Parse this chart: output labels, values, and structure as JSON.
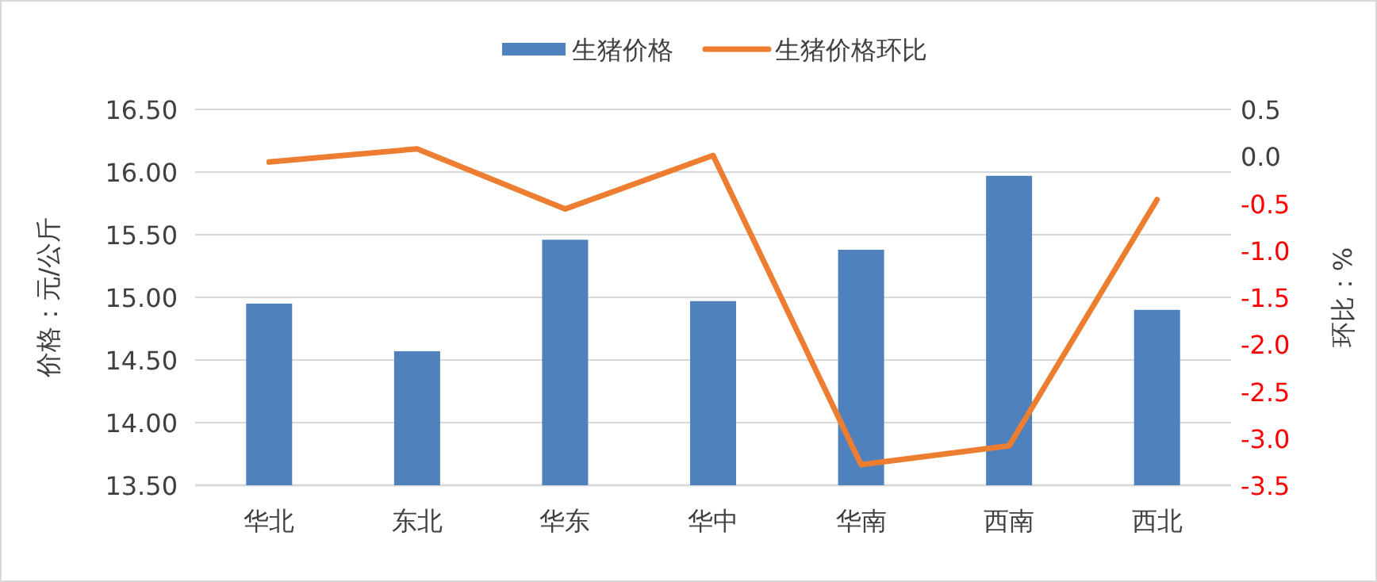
{
  "chart_data": {
    "type": "bar",
    "ylabel": "价格：元/公斤",
    "y2label": "环比：%",
    "categories": [
      "华北",
      "东北",
      "华东",
      "华中",
      "华南",
      "西南",
      "西北"
    ],
    "series": [
      {
        "name": "生猪价格",
        "color": "#4f81bd",
        "values": [
          14.95,
          14.57,
          15.46,
          14.97,
          15.38,
          15.97,
          14.9
        ]
      },
      {
        "name": "生猪价格环比",
        "type": "line",
        "axis": "y2",
        "color": "#ed7d31",
        "values": [
          -0.06,
          0.08,
          -0.56,
          0.01,
          -3.28,
          -3.08,
          -0.46
        ]
      }
    ],
    "ylim": [
      13.5,
      16.5
    ],
    "yticks": [
      {
        "value": 13.5,
        "label": "13.50"
      },
      {
        "value": 14,
        "label": "14.00"
      },
      {
        "value": 14.5,
        "label": "14.50"
      },
      {
        "value": 15,
        "label": "15.00"
      },
      {
        "value": 15.5,
        "label": "15.50"
      },
      {
        "value": 16,
        "label": "16.00"
      },
      {
        "value": 16.5,
        "label": "16.50"
      }
    ],
    "y2lim": [
      -3.5,
      0.5
    ],
    "y2ticks": [
      {
        "value": -3.5,
        "label": "-3.5"
      },
      {
        "value": -3,
        "label": "-3.0"
      },
      {
        "value": -2.5,
        "label": "-2.5"
      },
      {
        "value": -2,
        "label": "-2.0"
      },
      {
        "value": -1.5,
        "label": "-1.5"
      },
      {
        "value": -1,
        "label": "-1.0"
      },
      {
        "value": -0.5,
        "label": "-0.5"
      },
      {
        "value": 0,
        "label": "0.0"
      },
      {
        "value": 0.5,
        "label": "0.5"
      }
    ],
    "grid": "y",
    "legend": "top"
  }
}
